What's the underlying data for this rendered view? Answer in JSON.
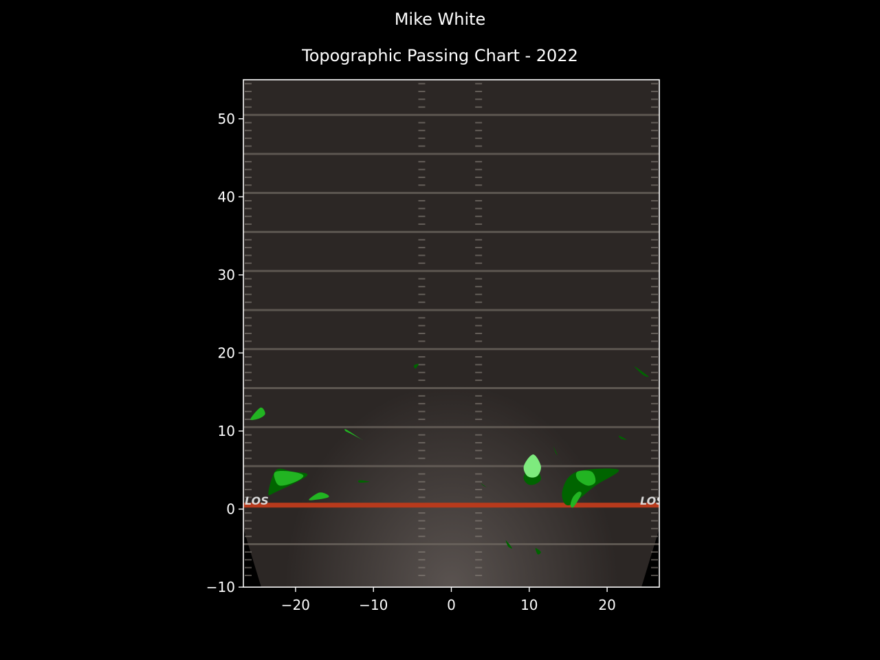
{
  "chart_data": {
    "type": "heatmap",
    "title": "Mike White",
    "subtitle": "Topographic Passing Chart - 2022",
    "xlabel": "",
    "ylabel": "",
    "xlim": [
      -26.7,
      26.7
    ],
    "ylim": [
      -10,
      55
    ],
    "x_ticks": [
      -20,
      -10,
      0,
      10,
      20
    ],
    "y_ticks": [
      -10,
      0,
      10,
      20,
      30,
      40,
      50
    ],
    "x_tick_labels": [
      "−20",
      "−10",
      "0",
      "10",
      "20"
    ],
    "y_tick_labels": [
      "−10",
      "0",
      "10",
      "20",
      "30",
      "40",
      "50"
    ],
    "line_of_scrimmage": 0.5,
    "field_marker_text": "LOS",
    "grid": false,
    "legend": "none",
    "colors": {
      "background": "#000000",
      "field": "#2c2725",
      "scrimmage_line": "#b83a1c",
      "level_1": "#006400",
      "level_2": "#22b422",
      "level_3": "#7eea7e"
    },
    "density_regions": [
      {
        "level": 1,
        "points": [
          [
            15.2,
            0.5
          ],
          [
            18.5,
            3.0
          ],
          [
            21.5,
            5.0
          ],
          [
            17.0,
            5.0
          ],
          [
            15.0,
            4.0
          ],
          [
            14.2,
            1.8
          ]
        ]
      },
      {
        "level": 2,
        "points": [
          [
            16.2,
            4.8
          ],
          [
            18.0,
            4.8
          ],
          [
            18.5,
            3.5
          ],
          [
            17.5,
            3.0
          ],
          [
            16.2,
            3.8
          ]
        ]
      },
      {
        "level": 2,
        "points": [
          [
            15.6,
            0.2
          ],
          [
            16.2,
            1.0
          ],
          [
            16.7,
            2.0
          ],
          [
            16.3,
            2.2
          ],
          [
            15.6,
            1.5
          ],
          [
            15.3,
            0.5
          ]
        ]
      },
      {
        "level": 1,
        "points": [
          [
            9.3,
            4.2
          ],
          [
            10.5,
            5.8
          ],
          [
            11.5,
            4.0
          ],
          [
            10.8,
            3.2
          ],
          [
            9.8,
            3.2
          ]
        ]
      },
      {
        "level": 3,
        "points": [
          [
            9.3,
            5.5
          ],
          [
            10.5,
            7.0
          ],
          [
            11.5,
            5.5
          ],
          [
            11.0,
            4.2
          ],
          [
            9.8,
            4.2
          ]
        ]
      },
      {
        "level": 1,
        "points": [
          [
            -23.5,
            2.0
          ],
          [
            -22.5,
            5.0
          ],
          [
            -20.5,
            4.8
          ],
          [
            -18.5,
            4.3
          ],
          [
            -22.5,
            2.2
          ]
        ]
      },
      {
        "level": 2,
        "points": [
          [
            -22.5,
            4.8
          ],
          [
            -20.5,
            4.8
          ],
          [
            -19.0,
            4.3
          ],
          [
            -20.0,
            3.5
          ],
          [
            -22.0,
            3.0
          ],
          [
            -22.7,
            4.0
          ]
        ]
      },
      {
        "level": 2,
        "points": [
          [
            -18.3,
            1.2
          ],
          [
            -17.0,
            2.1
          ],
          [
            -16.0,
            1.9
          ],
          [
            -15.8,
            1.5
          ],
          [
            -17.3,
            1.2
          ]
        ]
      },
      {
        "level": 2,
        "points": [
          [
            -25.8,
            11.5
          ],
          [
            -24.5,
            13.0
          ],
          [
            -23.9,
            12.2
          ],
          [
            -24.7,
            11.6
          ]
        ]
      },
      {
        "level": 2,
        "points": [
          [
            -13.6,
            10.0
          ],
          [
            -12.8,
            9.6
          ],
          [
            -11.3,
            8.8
          ],
          [
            -11.8,
            9.1
          ],
          [
            -13.5,
            10.2
          ]
        ]
      },
      {
        "level": 1,
        "points": [
          [
            -11.8,
            3.7
          ],
          [
            -10.5,
            3.5
          ],
          [
            -11.8,
            3.4
          ]
        ]
      },
      {
        "level": 1,
        "points": [
          [
            -4.6,
            18.0
          ],
          [
            -4.2,
            18.6
          ],
          [
            -4.8,
            18.4
          ]
        ]
      },
      {
        "level": 1,
        "points": [
          [
            23.5,
            18.3
          ],
          [
            25.3,
            17.0
          ],
          [
            24.6,
            17.2
          ]
        ]
      },
      {
        "level": 1,
        "points": [
          [
            21.5,
            9.4
          ],
          [
            22.5,
            8.9
          ],
          [
            21.8,
            9.0
          ]
        ]
      },
      {
        "level": 1,
        "points": [
          [
            13.1,
            8.0
          ],
          [
            13.6,
            7.0
          ],
          [
            13.4,
            7.2
          ]
        ]
      },
      {
        "level": 1,
        "points": [
          [
            3.8,
            3.3
          ],
          [
            4.5,
            2.8
          ],
          [
            4.1,
            3.0
          ]
        ]
      },
      {
        "level": 1,
        "points": [
          [
            7.0,
            -4.0
          ],
          [
            7.8,
            -5.0
          ],
          [
            7.3,
            -4.8
          ]
        ]
      },
      {
        "level": 1,
        "points": [
          [
            10.8,
            -5.0
          ],
          [
            11.5,
            -5.5
          ],
          [
            11.1,
            -5.8
          ]
        ]
      }
    ]
  }
}
